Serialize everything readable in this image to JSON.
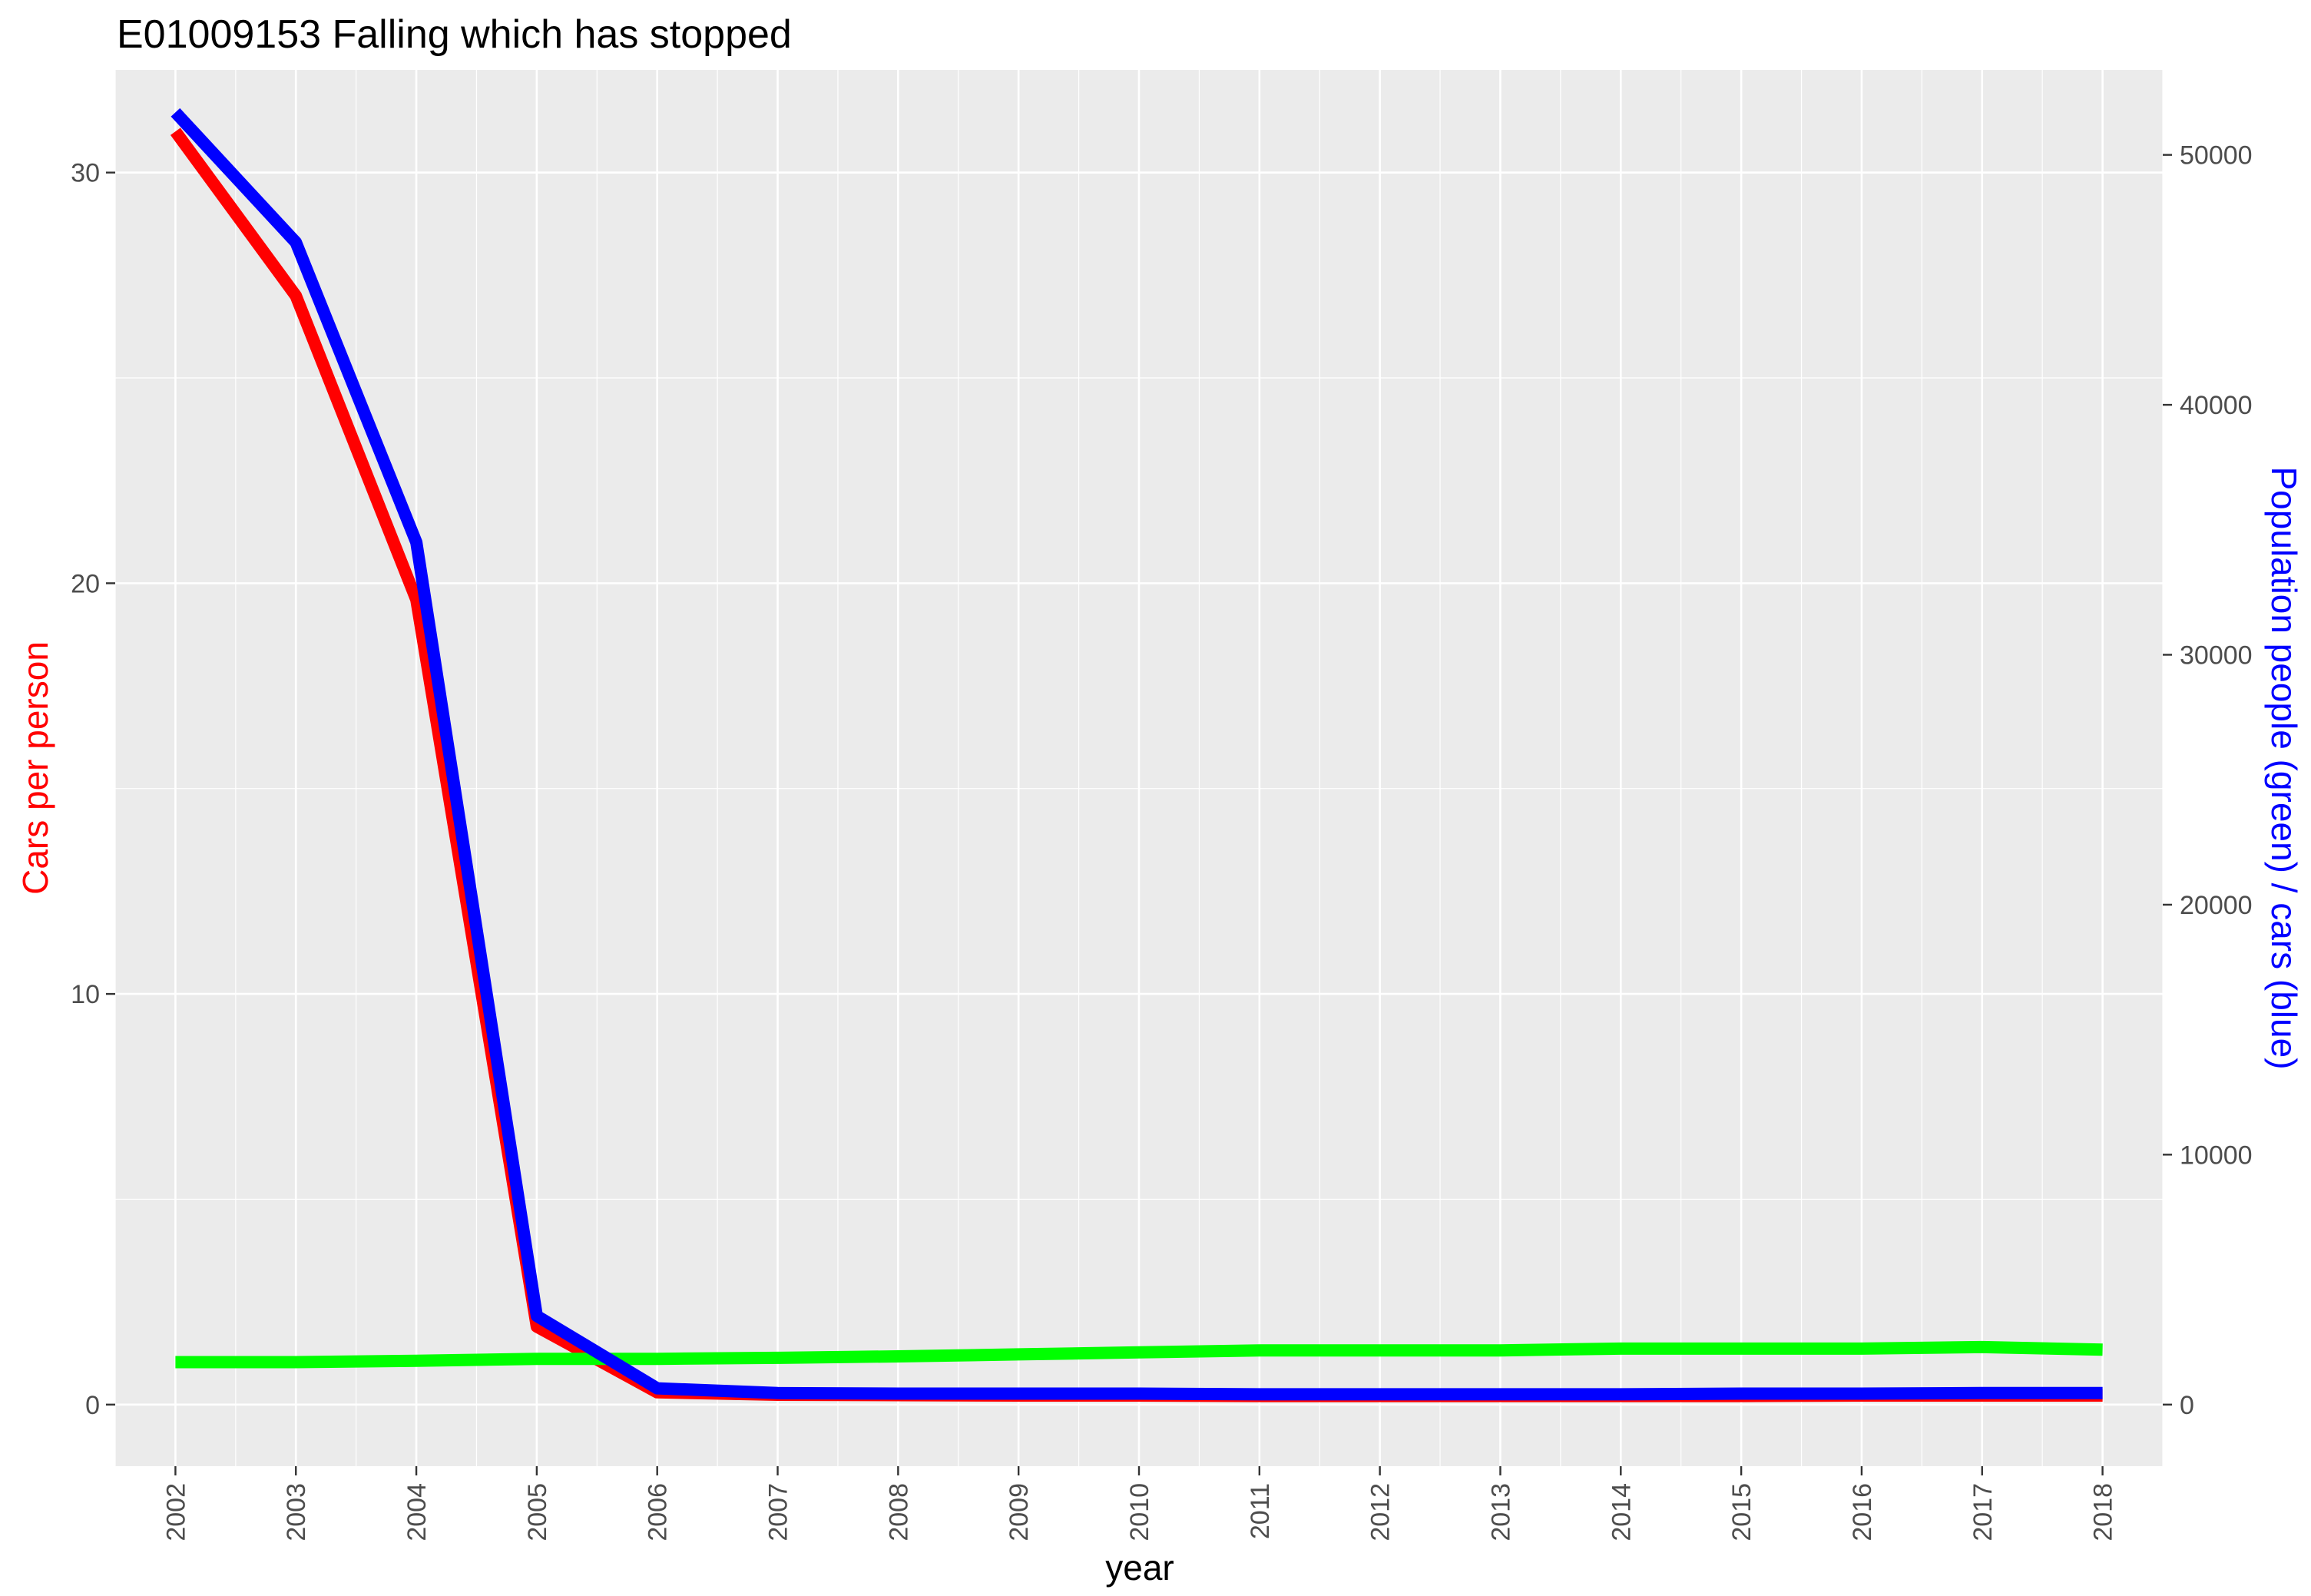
{
  "chart_data": {
    "type": "line",
    "title": "E01009153 Falling which has stopped",
    "xlabel": "year",
    "ylabel_left": "Cars per person",
    "ylabel_right": "Population people (green) / cars (blue)",
    "x": [
      2002,
      2003,
      2004,
      2005,
      2006,
      2007,
      2008,
      2009,
      2010,
      2011,
      2012,
      2013,
      2014,
      2015,
      2016,
      2017,
      2018
    ],
    "x_tick_labels": [
      "2002",
      "2003",
      "2004",
      "2005",
      "2006",
      "2007",
      "2008",
      "2009",
      "2010",
      "2011",
      "2012",
      "2013",
      "2014",
      "2015",
      "2016",
      "2017",
      "2018"
    ],
    "y_left_ticks": [
      0,
      10,
      20,
      30
    ],
    "y_left_tick_labels": [
      "0",
      "10",
      "20",
      "30"
    ],
    "y_right_ticks": [
      0,
      10000,
      20000,
      30000,
      40000,
      50000
    ],
    "y_right_tick_labels": [
      "0",
      "10000",
      "20000",
      "30000",
      "40000",
      "50000"
    ],
    "xlim": [
      2001.5,
      2018.5
    ],
    "ylim_left": [
      -1.5,
      32.5
    ],
    "ylim_right": [
      -2465,
      53400
    ],
    "grid": true,
    "series": [
      {
        "axis": "left",
        "color": "#ff0000",
        "values": [
          31.0,
          27.0,
          19.6,
          1.9,
          0.3,
          0.24,
          0.23,
          0.22,
          0.22,
          0.21,
          0.21,
          0.21,
          0.21,
          0.21,
          0.22,
          0.22,
          0.22
        ]
      },
      {
        "axis": "right",
        "color": "#00ff00",
        "values": [
          1700,
          1700,
          1750,
          1830,
          1830,
          1870,
          1930,
          2010,
          2090,
          2170,
          2170,
          2170,
          2240,
          2240,
          2240,
          2300,
          2200
        ]
      },
      {
        "axis": "right",
        "color": "#0000ff",
        "values": [
          51700,
          46500,
          34500,
          3550,
          650,
          460,
          440,
          440,
          440,
          410,
          410,
          410,
          410,
          440,
          440,
          460,
          460
        ]
      }
    ]
  }
}
